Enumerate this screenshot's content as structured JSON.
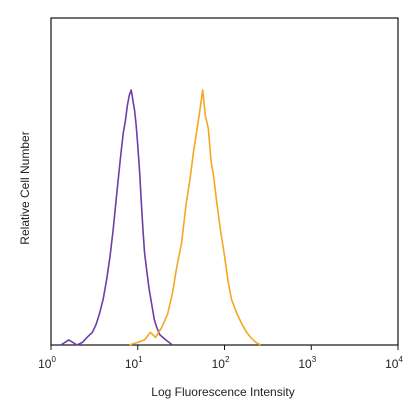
{
  "chart_data": {
    "type": "line",
    "title": "",
    "xlabel": "Log Fluorescence Intensity",
    "ylabel": "Relative Cell Number",
    "x_scale": "log",
    "xlim": [
      1,
      10000
    ],
    "x_ticks": [
      {
        "base": "10",
        "exp": "0"
      },
      {
        "base": "10",
        "exp": "1"
      },
      {
        "base": "10",
        "exp": "2"
      },
      {
        "base": "10",
        "exp": "3"
      },
      {
        "base": "10",
        "exp": "4"
      }
    ],
    "ylim": [
      0,
      1
    ],
    "grid": false,
    "legend": "none",
    "series": [
      {
        "color": "#6a3fa8",
        "x": [
          1.3,
          1.6,
          2,
          2.3,
          2.6,
          3,
          3.3,
          3.6,
          4,
          4.4,
          4.8,
          5.2,
          5.6,
          6,
          6.4,
          6.8,
          7.2,
          7.6,
          8,
          8.4,
          8.8,
          9.2,
          9.6,
          10,
          10.5,
          11,
          11.5,
          12,
          12.8,
          13.5,
          14.5,
          15.5,
          16.5,
          18,
          19.5,
          21,
          23,
          25
        ],
        "y": [
          0,
          0.02,
          0,
          0.01,
          0.03,
          0.05,
          0.08,
          0.12,
          0.18,
          0.26,
          0.35,
          0.45,
          0.56,
          0.66,
          0.75,
          0.83,
          0.88,
          0.94,
          0.98,
          1.0,
          0.96,
          0.92,
          0.86,
          0.78,
          0.68,
          0.56,
          0.45,
          0.36,
          0.28,
          0.22,
          0.16,
          0.1,
          0.07,
          0.04,
          0.03,
          0.02,
          0.01,
          0
        ]
      },
      {
        "color": "#f5a623",
        "x": [
          8,
          10,
          12,
          14,
          16,
          19,
          22,
          25,
          28,
          32,
          36,
          40,
          44,
          48,
          52,
          56,
          60,
          65,
          70,
          75,
          80,
          90,
          100,
          110,
          120,
          140,
          160,
          180,
          200,
          230,
          260
        ],
        "y": [
          0,
          0.01,
          0.02,
          0.05,
          0.03,
          0.07,
          0.12,
          0.2,
          0.3,
          0.4,
          0.55,
          0.65,
          0.76,
          0.84,
          0.92,
          1.0,
          0.9,
          0.85,
          0.72,
          0.66,
          0.58,
          0.45,
          0.35,
          0.25,
          0.18,
          0.12,
          0.08,
          0.05,
          0.03,
          0.01,
          0
        ]
      }
    ]
  }
}
